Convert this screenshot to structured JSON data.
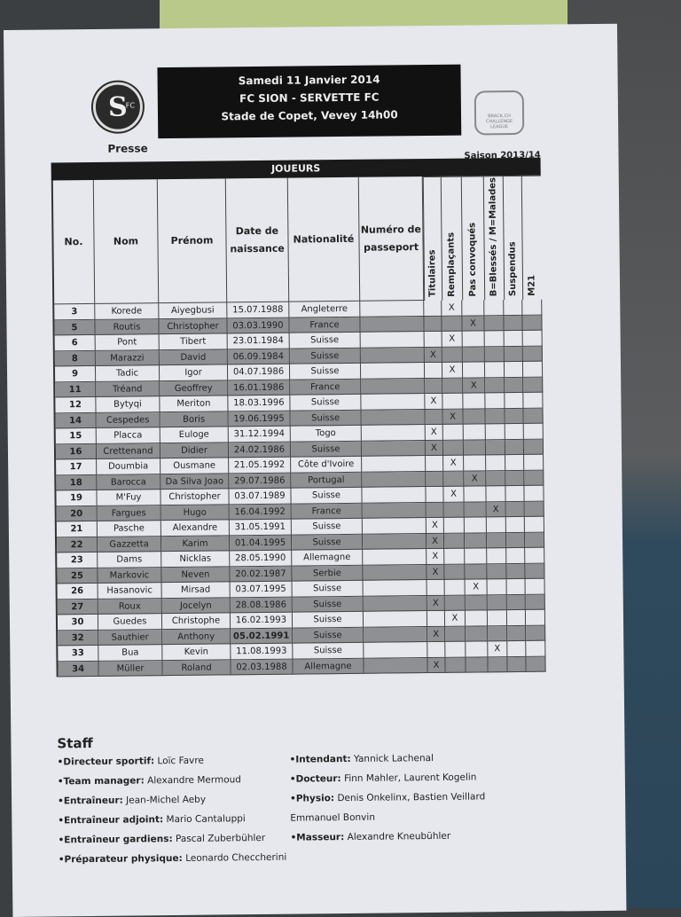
{
  "header": {
    "date": "Samedi 11 Janvier 2014",
    "match": "FC SION - SERVETTE FC",
    "venue": "Stade de Copet, Vevey 14h00",
    "presse": "Presse",
    "saison": "Saison 2013/14",
    "left_logo": "SERVETTE FC GENEVE 1890",
    "right_logo": "BRACK.CH CHALLENGE LEAGUE"
  },
  "table": {
    "title": "JOUEURS",
    "columns": [
      "No.",
      "Nom",
      "Prénom",
      "Date de naissance",
      "Nationalité",
      "Numéro de passeport",
      "Titulaires",
      "Remplaçants",
      "Pas convoqués",
      "B=Blessés / M=Malades",
      "Suspendus",
      "M21"
    ],
    "rows": [
      [
        "3",
        "Korede",
        "Aiyegbusi",
        "15.07.1988",
        "Angleterre",
        "Remplaçants"
      ],
      [
        "5",
        "Routis",
        "Christopher",
        "03.03.1990",
        "France",
        "Pas convoqués"
      ],
      [
        "6",
        "Pont",
        "Tibert",
        "23.01.1984",
        "Suisse",
        "Remplaçants"
      ],
      [
        "8",
        "Marazzi",
        "David",
        "06.09.1984",
        "Suisse",
        "Titulaires"
      ],
      [
        "9",
        "Tadic",
        "Igor",
        "04.07.1986",
        "Suisse",
        "Remplaçants"
      ],
      [
        "11",
        "Tréand",
        "Geoffrey",
        "16.01.1986",
        "France",
        "Pas convoqués"
      ],
      [
        "12",
        "Bytyqi",
        "Meriton",
        "18.03.1996",
        "Suisse",
        "Titulaires"
      ],
      [
        "14",
        "Cespedes",
        "Boris",
        "19.06.1995",
        "Suisse",
        "Remplaçants"
      ],
      [
        "15",
        "Placca",
        "Euloge",
        "31.12.1994",
        "Togo",
        "Titulaires"
      ],
      [
        "16",
        "Crettenand",
        "Didier",
        "24.02.1986",
        "Suisse",
        "Titulaires"
      ],
      [
        "17",
        "Doumbia",
        "Ousmane",
        "21.05.1992",
        "Côte d'Ivoire",
        "Remplaçants"
      ],
      [
        "18",
        "Barocca",
        "Da Silva Joao",
        "29.07.1986",
        "Portugal",
        "Pas convoqués"
      ],
      [
        "19",
        "M'Fuy",
        "Christopher",
        "03.07.1989",
        "Suisse",
        "Remplaçants"
      ],
      [
        "20",
        "Fargues",
        "Hugo",
        "16.04.1992",
        "France",
        "B=Blessés / M=Malades"
      ],
      [
        "21",
        "Pasche",
        "Alexandre",
        "31.05.1991",
        "Suisse",
        "Titulaires"
      ],
      [
        "22",
        "Gazzetta",
        "Karim",
        "01.04.1995",
        "Suisse",
        "Titulaires"
      ],
      [
        "23",
        "Dams",
        "Nicklas",
        "28.05.1990",
        "Allemagne",
        "Titulaires"
      ],
      [
        "25",
        "Markovic",
        "Neven",
        "20.02.1987",
        "Serbie",
        "Titulaires"
      ],
      [
        "26",
        "Hasanovic",
        "Mirsad",
        "03.07.1995",
        "Suisse",
        "Pas convoqués"
      ],
      [
        "27",
        "Roux",
        "Jocelyn",
        "28.08.1986",
        "Suisse",
        "Titulaires"
      ],
      [
        "30",
        "Guedes",
        "Christophe",
        "16.02.1993",
        "Suisse",
        "Remplaçants"
      ],
      [
        "32",
        "Sauthier",
        "Anthony",
        "05.02.1991",
        "Suisse",
        "Titulaires"
      ],
      [
        "33",
        "Bua",
        "Kevin",
        "11.08.1993",
        "Suisse",
        "B=Blessés / M=Malades"
      ],
      [
        "34",
        "Müller",
        "Roland",
        "02.03.1988",
        "Allemagne",
        "Titulaires"
      ]
    ],
    "mark": "X",
    "bold_date": "05.02.1991"
  },
  "staff": {
    "title": "Staff",
    "left": [
      {
        "role": "•Directeur sportif:",
        "name": "Loïc Favre"
      },
      {
        "role": "•Team manager:",
        "name": "Alexandre Mermoud"
      },
      {
        "role": "•Entraîneur:",
        "name": "Jean-Michel Aeby"
      },
      {
        "role": "•Entraîneur adjoint:",
        "name": "Mario Cantaluppi"
      },
      {
        "role": "•Entraîneur gardiens:",
        "name": "Pascal Zuberbühler"
      },
      {
        "role": "•Préparateur physique:",
        "name": "Leonardo Checcherini"
      }
    ],
    "right": [
      {
        "role": "•Intendant:",
        "name": "Yannick Lachenal"
      },
      {
        "role": "•Docteur:",
        "name": "Finn Mahler, Laurent Kogelin"
      },
      {
        "role": "•Physio:",
        "name": "Denis Onkelinx, Bastien Veillard"
      },
      {
        "role": "",
        "name": "Emmanuel Bonvin"
      },
      {
        "role": "•Masseur:",
        "name": "Alexandre Kneubühler"
      }
    ]
  }
}
